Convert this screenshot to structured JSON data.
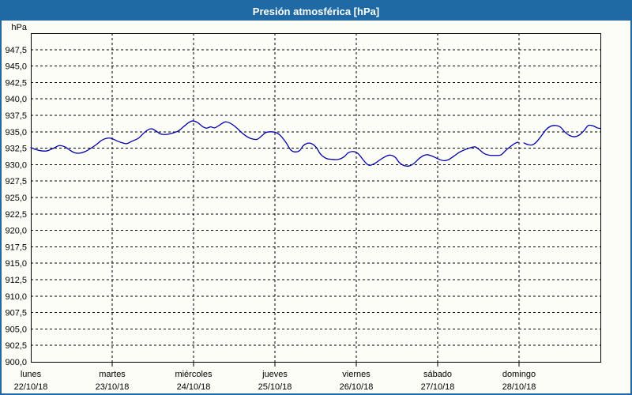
{
  "window": {
    "title": "Presión atmosférica [hPa]"
  },
  "colors": {
    "title_bar": "#1f6aa5",
    "title_text": "#ffffff",
    "window_border": "#1f6aa5",
    "background": "#fdfdf7",
    "axis": "#000000",
    "grid": "#000000",
    "text": "#000000",
    "series_line": "#0000aa"
  },
  "chart_data": {
    "type": "line",
    "title": "Presión atmosférica [hPa]",
    "legend": "none",
    "grid": "dashed horizontal at each 2.5 hPa tick, dashed vertical at each day boundary",
    "y_axis": {
      "unit_label": "hPa",
      "min": 900,
      "max": 950,
      "tick_step": 2.5,
      "ticks": [
        {
          "v": 947.5,
          "label": "947,5"
        },
        {
          "v": 945.0,
          "label": "945,0"
        },
        {
          "v": 942.5,
          "label": "942,5"
        },
        {
          "v": 940.0,
          "label": "940,0"
        },
        {
          "v": 937.5,
          "label": "937,5"
        },
        {
          "v": 935.0,
          "label": "935,0"
        },
        {
          "v": 932.5,
          "label": "932,5"
        },
        {
          "v": 930.0,
          "label": "930,0"
        },
        {
          "v": 927.5,
          "label": "927,5"
        },
        {
          "v": 925.0,
          "label": "925,0"
        },
        {
          "v": 922.5,
          "label": "922,5"
        },
        {
          "v": 920.0,
          "label": "920,0"
        },
        {
          "v": 917.5,
          "label": "917,5"
        },
        {
          "v": 915.0,
          "label": "915,0"
        },
        {
          "v": 912.5,
          "label": "912,5"
        },
        {
          "v": 910.0,
          "label": "910,0"
        },
        {
          "v": 907.5,
          "label": "907,5"
        },
        {
          "v": 905.0,
          "label": "905,0"
        },
        {
          "v": 902.5,
          "label": "902,5"
        },
        {
          "v": 900.0,
          "label": "900,0"
        }
      ]
    },
    "x_axis": {
      "range_days": [
        0,
        7
      ],
      "days": [
        {
          "name": "lunes",
          "date": "22/10/18"
        },
        {
          "name": "martes",
          "date": "23/10/18"
        },
        {
          "name": "miércoles",
          "date": "24/10/18"
        },
        {
          "name": "jueves",
          "date": "25/10/18"
        },
        {
          "name": "viernes",
          "date": "26/10/18"
        },
        {
          "name": "sábado",
          "date": "27/10/18"
        },
        {
          "name": "domingo",
          "date": "28/10/18"
        }
      ]
    },
    "series": [
      {
        "name": "Presión atmosférica",
        "unit": "hPa",
        "color": "#0000aa",
        "note": "x in days since lunes 22/10/18 00:00, y in hPa; two segments separated by a small data gap near domingo 00:00",
        "segments": [
          [
            [
              0.0,
              932.6
            ],
            [
              0.06,
              932.3
            ],
            [
              0.13,
              932.1
            ],
            [
              0.2,
              932.1
            ],
            [
              0.28,
              932.5
            ],
            [
              0.35,
              932.9
            ],
            [
              0.42,
              932.7
            ],
            [
              0.48,
              932.2
            ],
            [
              0.54,
              931.8
            ],
            [
              0.6,
              931.75
            ],
            [
              0.67,
              932.0
            ],
            [
              0.74,
              932.5
            ],
            [
              0.81,
              933.1
            ],
            [
              0.87,
              933.7
            ],
            [
              0.93,
              934.0
            ],
            [
              0.99,
              934.0
            ],
            [
              1.06,
              933.6
            ],
            [
              1.13,
              933.3
            ],
            [
              1.18,
              933.2
            ],
            [
              1.25,
              933.6
            ],
            [
              1.32,
              934.0
            ],
            [
              1.38,
              934.7
            ],
            [
              1.44,
              935.3
            ],
            [
              1.49,
              935.45
            ],
            [
              1.54,
              935.1
            ],
            [
              1.6,
              934.65
            ],
            [
              1.67,
              934.6
            ],
            [
              1.74,
              934.8
            ],
            [
              1.81,
              935.1
            ],
            [
              1.87,
              935.7
            ],
            [
              1.94,
              936.4
            ],
            [
              1.99,
              936.65
            ],
            [
              2.05,
              936.4
            ],
            [
              2.11,
              935.8
            ],
            [
              2.16,
              935.55
            ],
            [
              2.21,
              935.75
            ],
            [
              2.26,
              935.6
            ],
            [
              2.33,
              936.1
            ],
            [
              2.39,
              936.5
            ],
            [
              2.45,
              936.3
            ],
            [
              2.52,
              935.7
            ],
            [
              2.58,
              935.0
            ],
            [
              2.64,
              934.4
            ],
            [
              2.71,
              933.95
            ],
            [
              2.78,
              933.85
            ],
            [
              2.84,
              934.4
            ],
            [
              2.89,
              934.9
            ],
            [
              2.95,
              935.0
            ],
            [
              3.01,
              934.9
            ],
            [
              3.07,
              934.4
            ],
            [
              3.14,
              933.3
            ],
            [
              3.19,
              932.3
            ],
            [
              3.24,
              931.95
            ],
            [
              3.3,
              932.1
            ],
            [
              3.35,
              932.9
            ],
            [
              3.4,
              933.25
            ],
            [
              3.45,
              933.2
            ],
            [
              3.51,
              932.6
            ],
            [
              3.56,
              931.6
            ],
            [
              3.63,
              930.95
            ],
            [
              3.7,
              930.8
            ],
            [
              3.78,
              930.8
            ],
            [
              3.85,
              931.2
            ],
            [
              3.9,
              931.8
            ],
            [
              3.96,
              932.0
            ],
            [
              4.02,
              931.7
            ],
            [
              4.08,
              930.8
            ],
            [
              4.13,
              930.1
            ],
            [
              4.17,
              929.9
            ],
            [
              4.23,
              930.2
            ],
            [
              4.3,
              930.8
            ],
            [
              4.37,
              931.3
            ],
            [
              4.42,
              931.45
            ],
            [
              4.48,
              931.1
            ],
            [
              4.53,
              930.3
            ],
            [
              4.59,
              929.85
            ],
            [
              4.65,
              929.8
            ],
            [
              4.71,
              930.2
            ],
            [
              4.77,
              930.9
            ],
            [
              4.83,
              931.4
            ],
            [
              4.88,
              931.5
            ],
            [
              4.95,
              931.2
            ],
            [
              5.02,
              930.8
            ],
            [
              5.08,
              930.6
            ],
            [
              5.14,
              930.8
            ],
            [
              5.2,
              931.3
            ],
            [
              5.27,
              931.9
            ],
            [
              5.34,
              932.3
            ],
            [
              5.41,
              932.6
            ],
            [
              5.46,
              932.7
            ],
            [
              5.51,
              932.3
            ],
            [
              5.57,
              931.7
            ],
            [
              5.63,
              931.45
            ],
            [
              5.71,
              931.4
            ],
            [
              5.78,
              931.5
            ],
            [
              5.84,
              932.2
            ],
            [
              5.91,
              932.9
            ],
            [
              5.96,
              933.3
            ],
            [
              5.99,
              933.4
            ]
          ],
          [
            [
              6.06,
              933.3
            ],
            [
              6.11,
              933.05
            ],
            [
              6.16,
              933.0
            ],
            [
              6.21,
              933.4
            ],
            [
              6.27,
              934.3
            ],
            [
              6.33,
              935.3
            ],
            [
              6.39,
              935.85
            ],
            [
              6.45,
              935.95
            ],
            [
              6.51,
              935.7
            ],
            [
              6.56,
              935.0
            ],
            [
              6.62,
              934.45
            ],
            [
              6.68,
              934.25
            ],
            [
              6.74,
              934.5
            ],
            [
              6.8,
              935.2
            ],
            [
              6.85,
              935.95
            ],
            [
              6.91,
              935.9
            ],
            [
              6.96,
              935.6
            ],
            [
              7.0,
              935.5
            ]
          ]
        ]
      }
    ]
  }
}
